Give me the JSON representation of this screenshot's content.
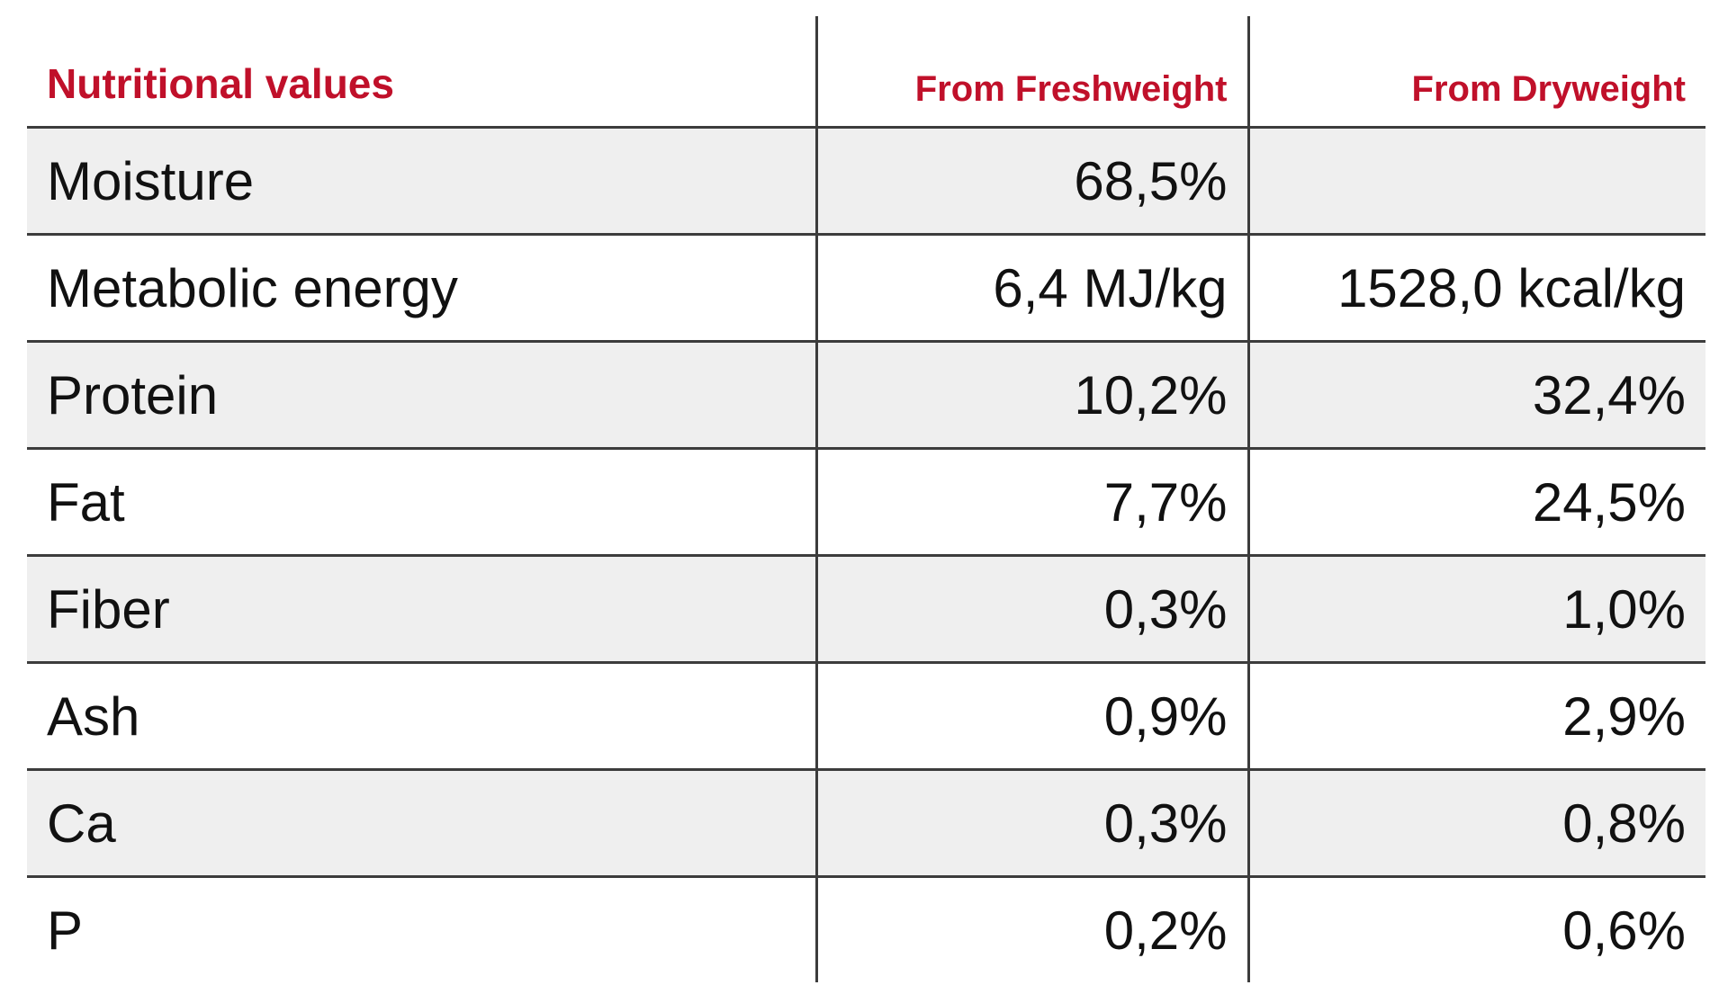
{
  "table": {
    "headers": {
      "label": "Nutritional values",
      "fresh": "From Freshweight",
      "dry": "From Dryweight"
    },
    "rows": [
      {
        "name": "Moisture",
        "fresh": "68,5%",
        "dry": ""
      },
      {
        "name": "Metabolic energy",
        "fresh": "6,4 MJ/kg",
        "dry": "1528,0 kcal/kg"
      },
      {
        "name": "Protein",
        "fresh": "10,2%",
        "dry": "32,4%"
      },
      {
        "name": "Fat",
        "fresh": "7,7%",
        "dry": "24,5%"
      },
      {
        "name": "Fiber",
        "fresh": "0,3%",
        "dry": "1,0%"
      },
      {
        "name": "Ash",
        "fresh": "0,9%",
        "dry": "2,9%"
      },
      {
        "name": "Ca",
        "fresh": "0,3%",
        "dry": "0,8%"
      },
      {
        "name": "P",
        "fresh": "0,2%",
        "dry": "0,6%"
      }
    ]
  },
  "colors": {
    "header_text": "#c0102a",
    "row_shade": "#efefef",
    "rule": "#3c3c3c"
  }
}
